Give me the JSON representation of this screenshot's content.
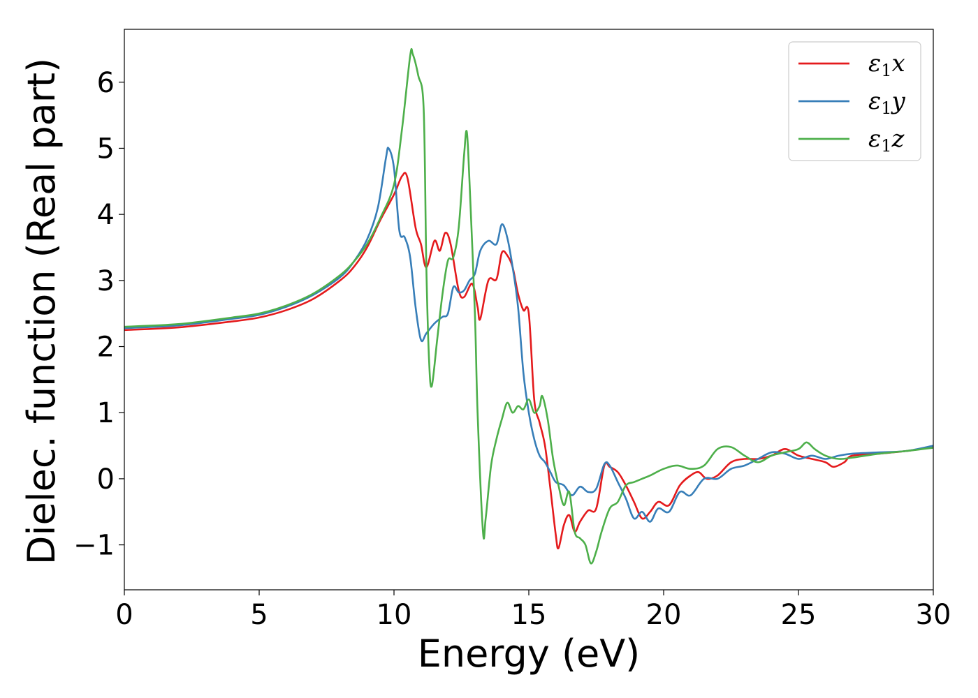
{
  "chart_data": {
    "type": "line",
    "title": "",
    "xlabel": "Energy (eV)",
    "ylabel": "Dielec. function (Real part)",
    "xlim": [
      0,
      30
    ],
    "ylim": [
      -1.68,
      6.8
    ],
    "xticks": [
      0,
      5,
      10,
      15,
      20,
      25,
      30
    ],
    "yticks": [
      -1,
      0,
      1,
      2,
      3,
      4,
      5,
      6
    ],
    "xtick_labels": [
      "0",
      "5",
      "10",
      "15",
      "20",
      "25",
      "30"
    ],
    "ytick_labels": [
      "−1",
      "0",
      "1",
      "2",
      "3",
      "4",
      "5",
      "6"
    ],
    "grid": false,
    "legend_position": "top-right",
    "series": [
      {
        "name": "ε1x",
        "legend_base": "ε",
        "legend_sub": "1",
        "legend_var": "x",
        "color": "#e41a1c",
        "points": [
          [
            0,
            2.25
          ],
          [
            2,
            2.29
          ],
          [
            4,
            2.38
          ],
          [
            5,
            2.44
          ],
          [
            6,
            2.55
          ],
          [
            7,
            2.72
          ],
          [
            8,
            3.0
          ],
          [
            8.5,
            3.2
          ],
          [
            9,
            3.5
          ],
          [
            9.5,
            3.92
          ],
          [
            10,
            4.3
          ],
          [
            10.3,
            4.58
          ],
          [
            10.5,
            4.55
          ],
          [
            10.8,
            3.8
          ],
          [
            11,
            3.55
          ],
          [
            11.2,
            3.2
          ],
          [
            11.5,
            3.6
          ],
          [
            11.7,
            3.45
          ],
          [
            11.9,
            3.72
          ],
          [
            12.1,
            3.55
          ],
          [
            12.4,
            2.85
          ],
          [
            12.6,
            2.75
          ],
          [
            12.9,
            2.95
          ],
          [
            13.1,
            2.6
          ],
          [
            13.2,
            2.42
          ],
          [
            13.5,
            3.0
          ],
          [
            13.8,
            3.02
          ],
          [
            14,
            3.42
          ],
          [
            14.2,
            3.38
          ],
          [
            14.4,
            3.2
          ],
          [
            14.6,
            2.8
          ],
          [
            14.8,
            2.55
          ],
          [
            15,
            2.5
          ],
          [
            15.2,
            1.2
          ],
          [
            15.4,
            0.85
          ],
          [
            15.6,
            0.5
          ],
          [
            15.8,
            -0.15
          ],
          [
            16,
            -0.85
          ],
          [
            16.1,
            -1.05
          ],
          [
            16.3,
            -0.7
          ],
          [
            16.5,
            -0.55
          ],
          [
            16.7,
            -0.8
          ],
          [
            16.9,
            -0.65
          ],
          [
            17.2,
            -0.48
          ],
          [
            17.5,
            -0.45
          ],
          [
            17.8,
            0.2
          ],
          [
            18,
            0.18
          ],
          [
            18.3,
            0.1
          ],
          [
            18.6,
            -0.1
          ],
          [
            18.9,
            -0.35
          ],
          [
            19.2,
            -0.6
          ],
          [
            19.5,
            -0.5
          ],
          [
            19.8,
            -0.35
          ],
          [
            20.2,
            -0.4
          ],
          [
            20.6,
            -0.1
          ],
          [
            21,
            0.05
          ],
          [
            21.3,
            0.1
          ],
          [
            21.6,
            0.0
          ],
          [
            22,
            0.05
          ],
          [
            22.5,
            0.25
          ],
          [
            23,
            0.3
          ],
          [
            23.5,
            0.3
          ],
          [
            24,
            0.35
          ],
          [
            24.5,
            0.45
          ],
          [
            25,
            0.35
          ],
          [
            25.5,
            0.3
          ],
          [
            26,
            0.25
          ],
          [
            26.3,
            0.18
          ],
          [
            26.7,
            0.25
          ],
          [
            27,
            0.35
          ],
          [
            28,
            0.38
          ],
          [
            29,
            0.42
          ],
          [
            30,
            0.48
          ]
        ]
      },
      {
        "name": "ε1y",
        "legend_base": "ε",
        "legend_sub": "1",
        "legend_var": "y",
        "color": "#377eb8",
        "points": [
          [
            0,
            2.28
          ],
          [
            2,
            2.32
          ],
          [
            4,
            2.42
          ],
          [
            5,
            2.48
          ],
          [
            6,
            2.6
          ],
          [
            7,
            2.78
          ],
          [
            8,
            3.05
          ],
          [
            8.5,
            3.28
          ],
          [
            9,
            3.62
          ],
          [
            9.4,
            4.1
          ],
          [
            9.7,
            4.85
          ],
          [
            9.8,
            5.0
          ],
          [
            10,
            4.7
          ],
          [
            10.2,
            3.75
          ],
          [
            10.4,
            3.65
          ],
          [
            10.6,
            3.35
          ],
          [
            10.8,
            2.6
          ],
          [
            11,
            2.1
          ],
          [
            11.2,
            2.2
          ],
          [
            11.5,
            2.35
          ],
          [
            11.8,
            2.45
          ],
          [
            12,
            2.5
          ],
          [
            12.2,
            2.9
          ],
          [
            12.4,
            2.82
          ],
          [
            12.6,
            2.85
          ],
          [
            12.8,
            3.0
          ],
          [
            13,
            3.1
          ],
          [
            13.2,
            3.45
          ],
          [
            13.5,
            3.6
          ],
          [
            13.8,
            3.55
          ],
          [
            14,
            3.85
          ],
          [
            14.2,
            3.65
          ],
          [
            14.4,
            3.2
          ],
          [
            14.6,
            2.6
          ],
          [
            14.8,
            1.6
          ],
          [
            15,
            1.0
          ],
          [
            15.2,
            0.6
          ],
          [
            15.4,
            0.35
          ],
          [
            15.6,
            0.25
          ],
          [
            15.8,
            0.1
          ],
          [
            16,
            -0.05
          ],
          [
            16.3,
            -0.1
          ],
          [
            16.6,
            -0.25
          ],
          [
            16.9,
            -0.12
          ],
          [
            17.2,
            -0.2
          ],
          [
            17.5,
            -0.15
          ],
          [
            17.8,
            0.22
          ],
          [
            18,
            0.2
          ],
          [
            18.3,
            -0.05
          ],
          [
            18.6,
            -0.3
          ],
          [
            18.9,
            -0.6
          ],
          [
            19.2,
            -0.5
          ],
          [
            19.5,
            -0.65
          ],
          [
            19.8,
            -0.45
          ],
          [
            20.2,
            -0.5
          ],
          [
            20.6,
            -0.2
          ],
          [
            21,
            -0.25
          ],
          [
            21.5,
            0.0
          ],
          [
            22,
            0.0
          ],
          [
            22.5,
            0.15
          ],
          [
            23,
            0.2
          ],
          [
            23.5,
            0.3
          ],
          [
            24,
            0.4
          ],
          [
            24.5,
            0.38
          ],
          [
            25,
            0.3
          ],
          [
            25.5,
            0.35
          ],
          [
            26,
            0.3
          ],
          [
            26.5,
            0.35
          ],
          [
            27,
            0.38
          ],
          [
            28,
            0.4
          ],
          [
            29,
            0.42
          ],
          [
            30,
            0.5
          ]
        ]
      },
      {
        "name": "ε1z",
        "legend_base": "ε",
        "legend_sub": "1",
        "legend_var": "z",
        "color": "#4daf4a",
        "points": [
          [
            0,
            2.3
          ],
          [
            2,
            2.34
          ],
          [
            4,
            2.44
          ],
          [
            5,
            2.5
          ],
          [
            6,
            2.62
          ],
          [
            7,
            2.8
          ],
          [
            8,
            3.08
          ],
          [
            8.5,
            3.28
          ],
          [
            9,
            3.55
          ],
          [
            9.5,
            3.95
          ],
          [
            10,
            4.45
          ],
          [
            10.3,
            5.3
          ],
          [
            10.6,
            6.4
          ],
          [
            10.7,
            6.42
          ],
          [
            10.9,
            6.1
          ],
          [
            11.1,
            5.6
          ],
          [
            11.2,
            3.2
          ],
          [
            11.3,
            1.8
          ],
          [
            11.4,
            1.4
          ],
          [
            11.6,
            2.1
          ],
          [
            11.8,
            2.8
          ],
          [
            12,
            3.3
          ],
          [
            12.2,
            3.35
          ],
          [
            12.4,
            3.8
          ],
          [
            12.6,
            4.9
          ],
          [
            12.7,
            5.25
          ],
          [
            12.8,
            4.5
          ],
          [
            13,
            2.5
          ],
          [
            13.1,
            1.0
          ],
          [
            13.3,
            -0.8
          ],
          [
            13.4,
            -0.6
          ],
          [
            13.6,
            0.2
          ],
          [
            13.8,
            0.6
          ],
          [
            14,
            0.9
          ],
          [
            14.2,
            1.15
          ],
          [
            14.4,
            1.0
          ],
          [
            14.6,
            1.1
          ],
          [
            14.8,
            1.05
          ],
          [
            15,
            1.2
          ],
          [
            15.2,
            1.0
          ],
          [
            15.4,
            1.1
          ],
          [
            15.5,
            1.25
          ],
          [
            15.7,
            0.9
          ],
          [
            15.9,
            0.3
          ],
          [
            16.1,
            -0.1
          ],
          [
            16.3,
            -0.4
          ],
          [
            16.5,
            -0.2
          ],
          [
            16.7,
            -0.8
          ],
          [
            16.9,
            -0.9
          ],
          [
            17.1,
            -1.0
          ],
          [
            17.3,
            -1.28
          ],
          [
            17.5,
            -1.1
          ],
          [
            17.7,
            -0.8
          ],
          [
            18,
            -0.45
          ],
          [
            18.3,
            -0.35
          ],
          [
            18.6,
            -0.1
          ],
          [
            18.9,
            -0.05
          ],
          [
            19.2,
            0.0
          ],
          [
            19.5,
            0.05
          ],
          [
            20,
            0.15
          ],
          [
            20.5,
            0.2
          ],
          [
            21,
            0.15
          ],
          [
            21.5,
            0.2
          ],
          [
            22,
            0.45
          ],
          [
            22.5,
            0.48
          ],
          [
            23,
            0.35
          ],
          [
            23.5,
            0.25
          ],
          [
            24,
            0.35
          ],
          [
            24.5,
            0.4
          ],
          [
            25,
            0.45
          ],
          [
            25.3,
            0.55
          ],
          [
            25.6,
            0.45
          ],
          [
            26,
            0.35
          ],
          [
            26.5,
            0.3
          ],
          [
            27,
            0.32
          ],
          [
            28,
            0.38
          ],
          [
            29,
            0.42
          ],
          [
            30,
            0.47
          ]
        ]
      }
    ]
  }
}
